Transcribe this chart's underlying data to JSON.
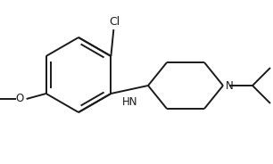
{
  "background_color": "#ffffff",
  "line_color": "#1a1a1a",
  "line_width": 1.4,
  "font_size": 8.5,
  "figsize": [
    3.06,
    1.84
  ],
  "dpi": 100,
  "xlim": [
    0.0,
    3.06
  ],
  "ylim": [
    0.0,
    1.84
  ]
}
